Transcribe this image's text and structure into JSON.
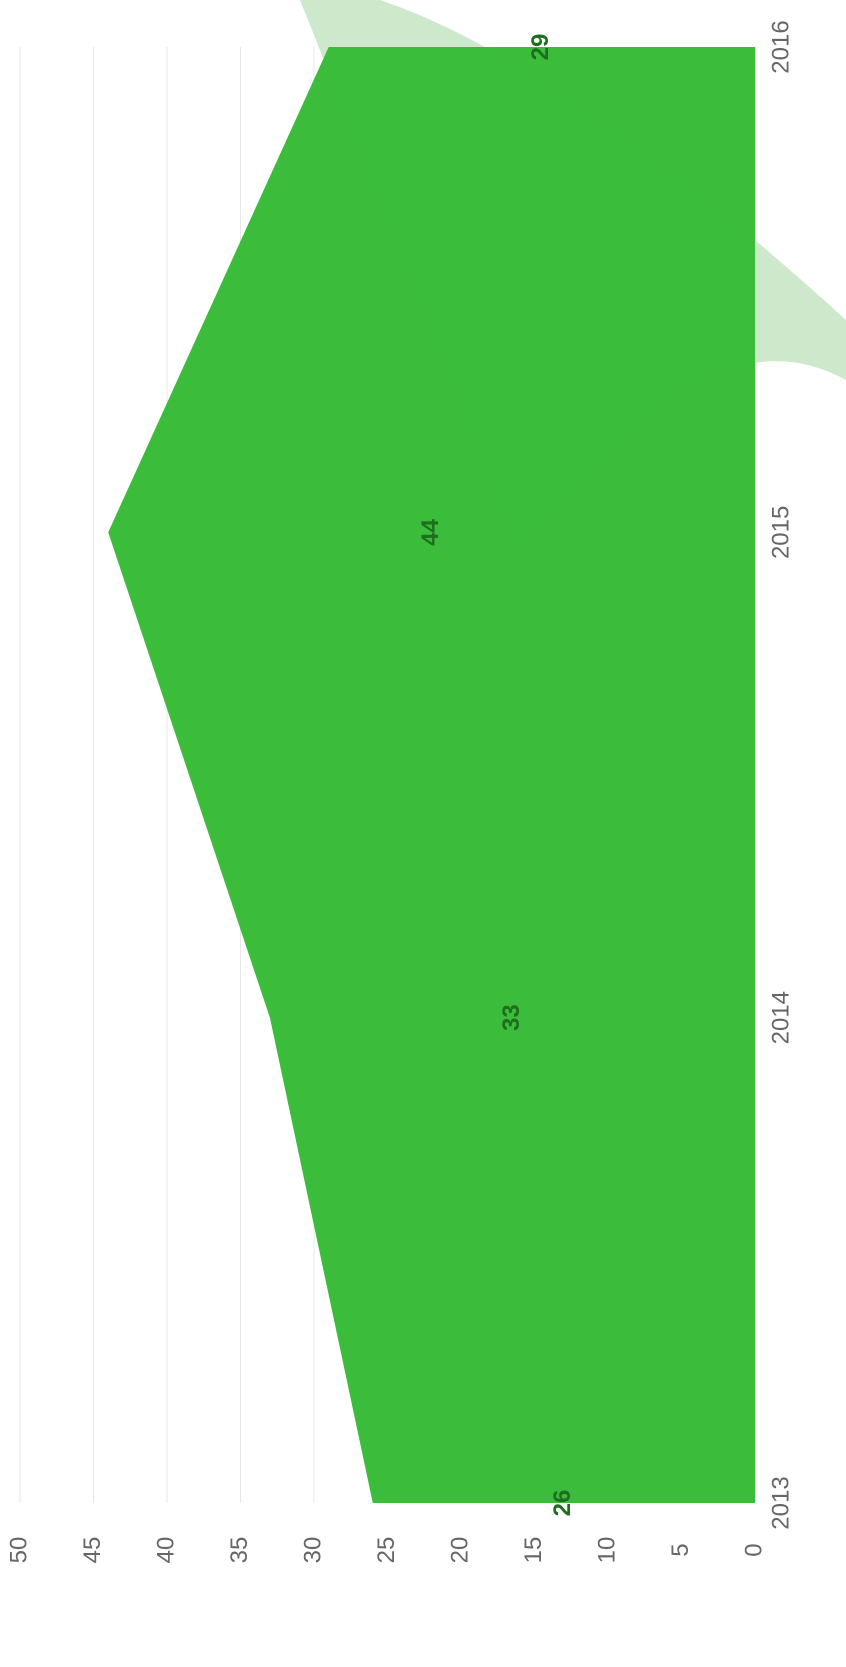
{
  "chart_data": {
    "type": "area",
    "categories": [
      "2013",
      "2014",
      "2015",
      "2016"
    ],
    "values": [
      26,
      33,
      44,
      29
    ],
    "color": "#35bb35",
    "label_color": "#1e6e1e",
    "ylim": [
      0,
      50
    ],
    "yticks": [
      0,
      5,
      10,
      15,
      20,
      25,
      30,
      35,
      40,
      45,
      50
    ],
    "grid": true,
    "orientation": "rotated"
  }
}
